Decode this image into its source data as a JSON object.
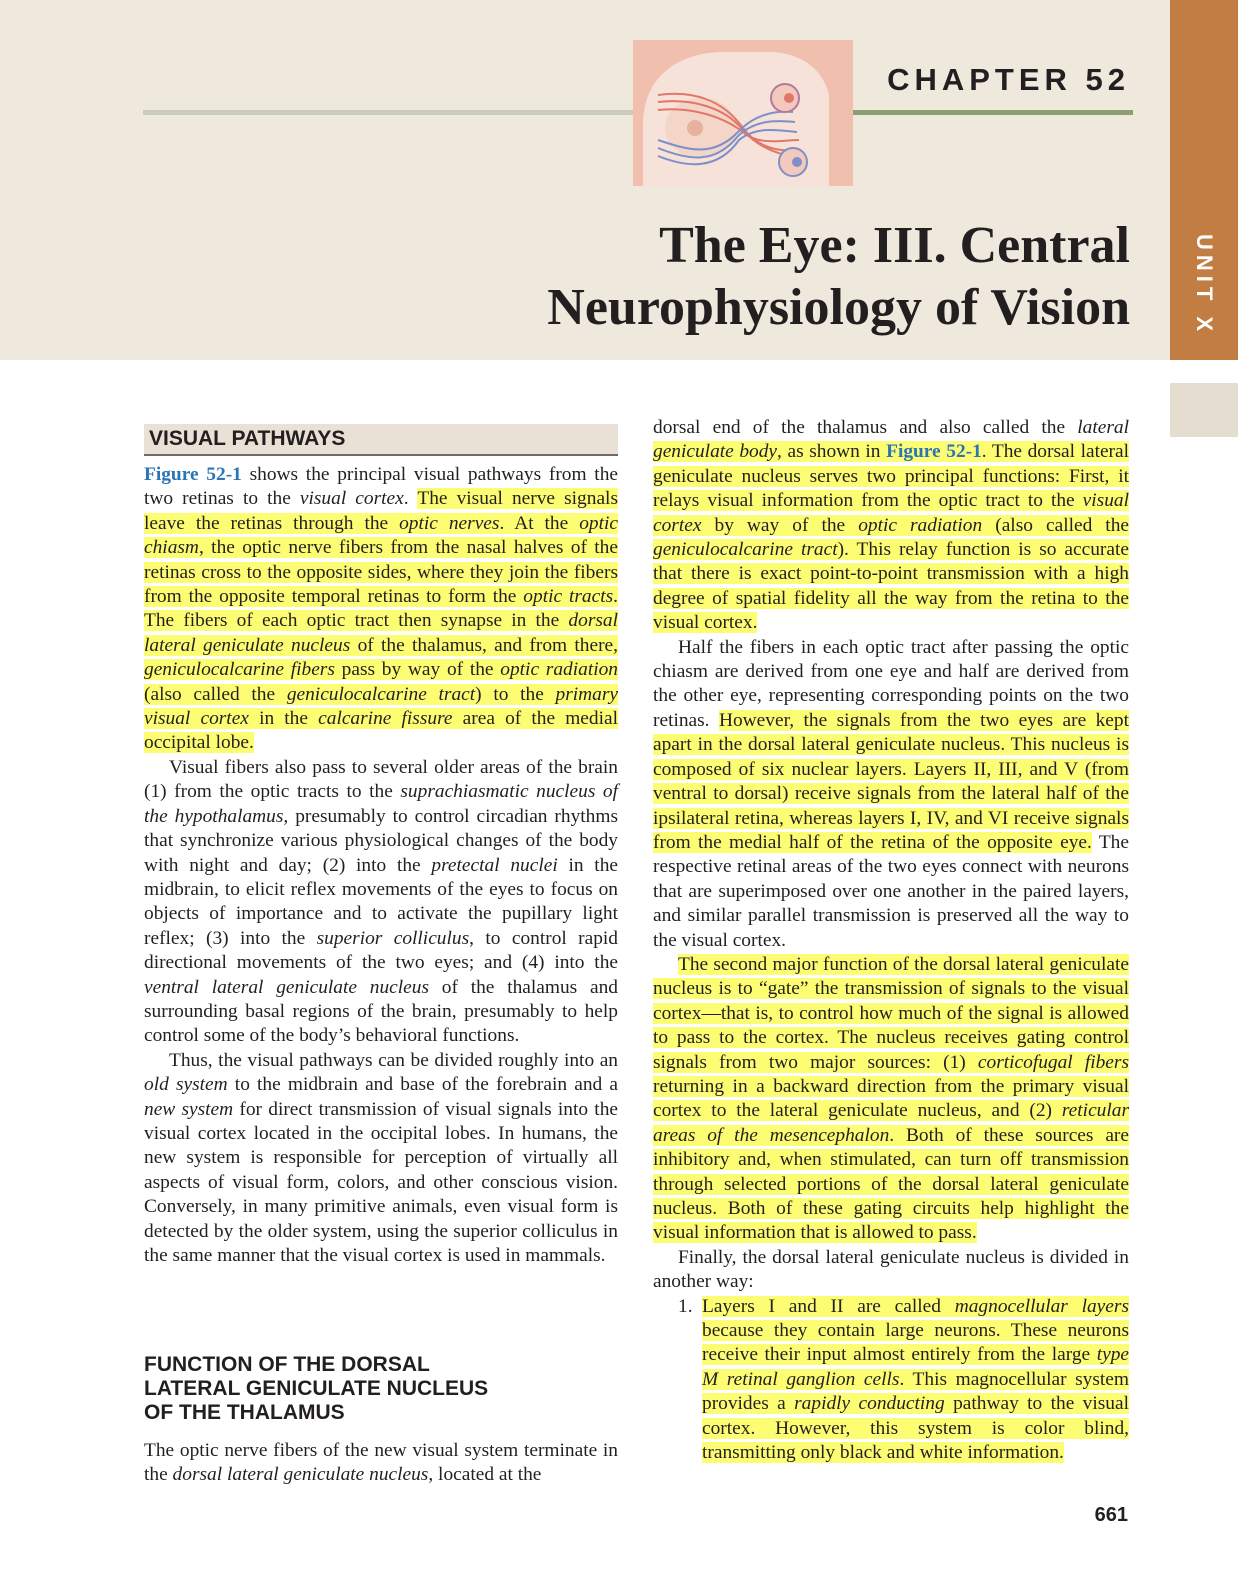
{
  "header": {
    "chapter_label": "CHAPTER 52",
    "title_line1": "The Eye: III. Central",
    "title_line2": "Neurophysiology of Vision",
    "unit_label": "UNIT X"
  },
  "sections": {
    "visual_pathways_heading": "VISUAL PATHWAYS",
    "dorsal_heading_line1": "FUNCTION OF THE DORSAL",
    "dorsal_heading_line2": "LATERAL GENICULATE NUCLEUS",
    "dorsal_heading_line3": "OF THE THALAMUS"
  },
  "colors": {
    "highlight": "#fdfd74",
    "link": "#2b74b6",
    "unit_tab": "#c27d42",
    "header_band": "#efe8dc"
  },
  "figure_icon": "visual-pathway-diagram",
  "page_number": "661"
}
